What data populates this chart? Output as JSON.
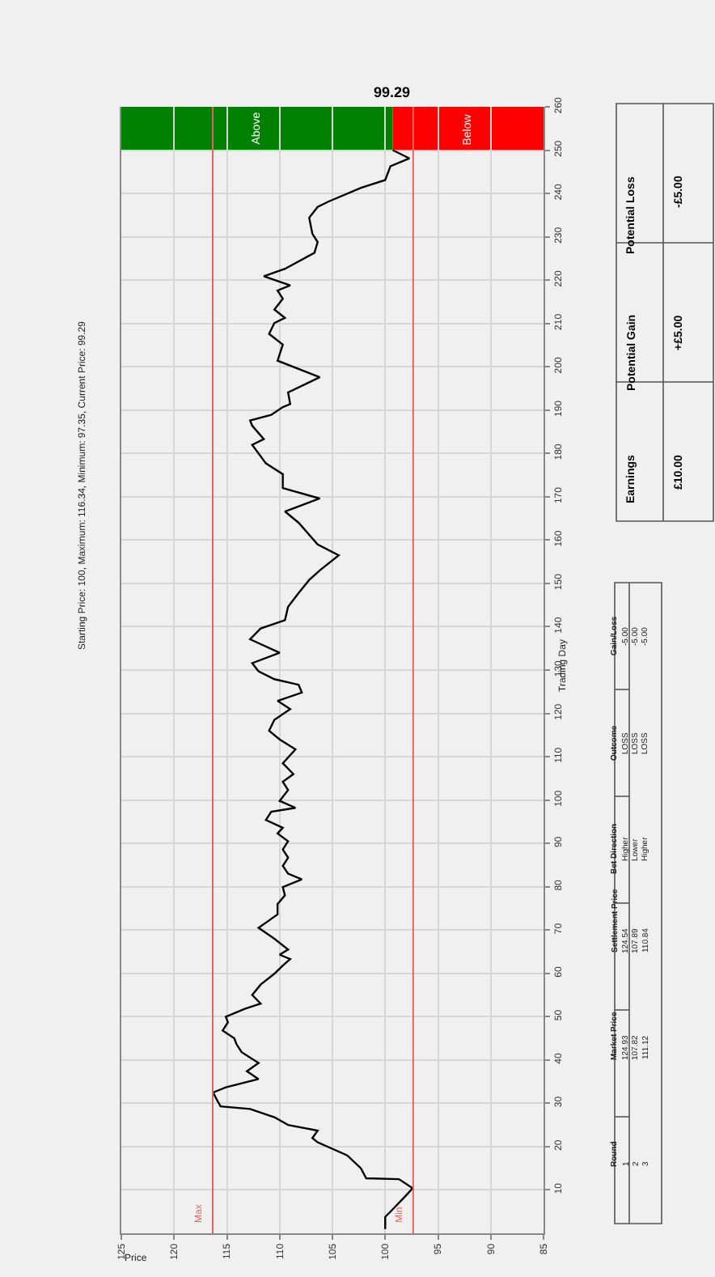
{
  "chart_data": {
    "type": "line",
    "title": "Starting Price: 100, Maximum: 116.34, Minimum: 97.35, Current Price: 99.29",
    "xlabel": "Price",
    "ylabel": "Trading Day",
    "orientation": "horizontal",
    "ylim": [
      0,
      260
    ],
    "yticks": [
      10,
      20,
      30,
      40,
      50,
      60,
      70,
      80,
      90,
      100,
      110,
      120,
      130,
      140,
      150,
      160,
      170,
      180,
      190,
      200,
      210,
      220,
      230,
      240,
      250,
      260
    ],
    "xlim": [
      125,
      85
    ],
    "xticks": [
      125,
      120,
      115,
      110,
      105,
      100,
      95,
      90,
      85
    ],
    "grid": true,
    "marker": "none",
    "line_style": "solid",
    "series": [
      {
        "color": "#000000",
        "x": [
          1,
          3.8,
          5,
          8.8,
          10.4,
          12.5,
          12.7,
          15,
          18,
          21,
          22,
          23.7,
          25,
          26.8,
          28.7,
          29.3,
          30.6,
          32.5,
          33.7,
          35.6,
          37.4,
          39.3,
          41.8,
          43.7,
          45,
          46.8,
          48.7,
          50,
          51.8,
          53,
          55,
          57.4,
          59.9,
          61.8,
          63.3,
          64.3,
          65.5,
          68,
          70.5,
          71.7,
          73.6,
          76,
          78,
          79.9,
          81.7,
          83,
          84.8,
          86.7,
          88.6,
          90.5,
          92.3,
          93.6,
          95.4,
          97.3,
          98.2,
          99.8,
          102.3,
          104.2,
          106,
          108.5,
          111.7,
          114,
          116,
          118.5,
          121,
          122.9,
          124.8,
          126.6,
          127.9,
          129.7,
          131.6,
          134,
          137.1,
          139.6,
          141.5,
          144.6,
          147.8,
          150.8,
          153,
          156.5,
          159,
          164,
          166.6,
          169.6,
          172,
          175.2,
          177.7,
          182,
          183.3,
          186.4,
          187.6,
          188.9,
          190.7,
          191.4,
          194.1,
          197.6,
          201.4,
          205.1,
          207.6,
          210.1,
          211.3,
          213.2,
          215.7,
          217.6,
          218.8,
          220.9,
          222.6,
          226.3,
          228.8,
          230.7,
          234.4,
          236.9,
          238.1,
          241.3,
          243.1,
          246.3,
          248.1,
          250
        ],
        "values": [
          100,
          100,
          99.5,
          98,
          97.4,
          98.7,
          101.8,
          102.3,
          103.6,
          106.4,
          106.9,
          106.4,
          109.2,
          110.5,
          112.8,
          115.6,
          115.9,
          116.3,
          115.1,
          112,
          113.1,
          112,
          113.6,
          114.1,
          114.3,
          115.4,
          114.9,
          115.1,
          113.3,
          111.8,
          112.6,
          111.8,
          110.5,
          109.7,
          109,
          110,
          109.2,
          110.5,
          112,
          111.3,
          110.2,
          110.2,
          109.5,
          109.7,
          107.9,
          109.2,
          109.7,
          109.2,
          109.7,
          109.2,
          110.2,
          109.7,
          111.3,
          110.8,
          108.5,
          110,
          109.2,
          109.7,
          108.7,
          109.7,
          108.5,
          110,
          111,
          110.5,
          109,
          110.2,
          107.9,
          108.2,
          110.5,
          112,
          112.6,
          110,
          112.8,
          111.8,
          109.5,
          109.2,
          108.2,
          107.2,
          106.2,
          104.4,
          106.4,
          108.2,
          109.5,
          106.2,
          109.7,
          109.7,
          111.3,
          112.6,
          111.5,
          112.6,
          112.8,
          110.8,
          109.7,
          109,
          109.2,
          106.2,
          110.2,
          109.7,
          111,
          110.5,
          109.5,
          110.5,
          109.7,
          110.2,
          109,
          111.5,
          109.5,
          106.7,
          106.4,
          106.9,
          107.2,
          106.4,
          105.4,
          102.3,
          100,
          99.5,
          97.7,
          99.29
        ]
      }
    ],
    "ref_lines": [
      {
        "axis": "x",
        "value": 116.34,
        "label": "Max",
        "color": "#e06666"
      },
      {
        "axis": "x",
        "value": 97.35,
        "label": "Min",
        "color": "#e06666"
      }
    ],
    "bands": [
      {
        "axis": "y",
        "from": 250,
        "to": 260,
        "label": "Above",
        "color": "#008000"
      },
      {
        "axis": "y",
        "from": 250,
        "to": 260,
        "label": "Below",
        "color": "#ff0000"
      }
    ],
    "annotations": [
      {
        "text": "99.29",
        "x": 99.29,
        "y": 260
      },
      "Round",
      "Market Price",
      "Settlement Price",
      "Bet Direction",
      "Outcome",
      "Gain/Loss",
      "1",
      "124.93",
      "124.54",
      "Higher",
      "LOSS",
      "-5.00",
      "2",
      "107.82",
      "107.89",
      "Lower",
      "LOSS",
      "-5.00",
      "3",
      "111.12",
      "110.84",
      "Higher",
      "LOSS",
      "-5.00",
      "Earnings",
      "Potential Gain",
      "Potential Loss",
      "£10.00",
      "+£5.00",
      "-£5.00"
    ]
  }
}
